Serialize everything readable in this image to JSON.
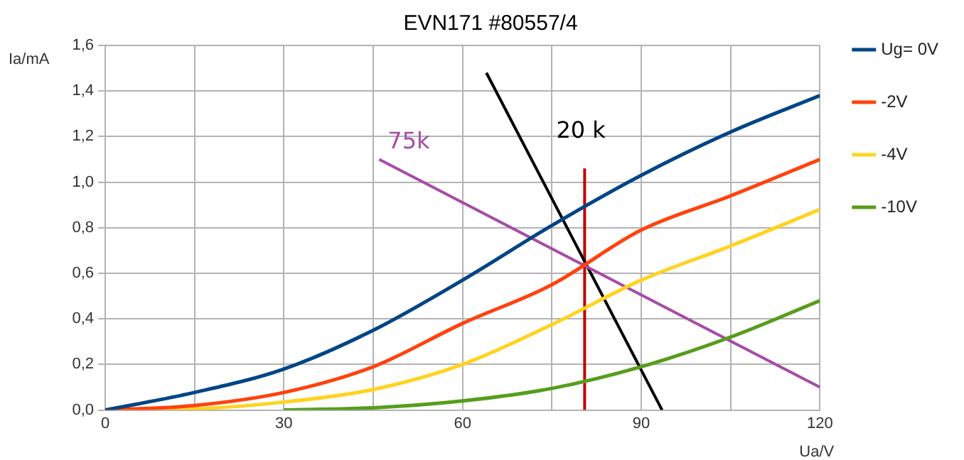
{
  "chart_data": {
    "type": "line",
    "title": "EVN171 #80557/4",
    "xlabel": "Ua/V",
    "ylabel": "Ia/mA",
    "xlim": [
      0,
      120
    ],
    "xticks": [
      0,
      {
        "value": 15,
        "label": null
      },
      30,
      {
        "value": 45,
        "label": null
      },
      60,
      {
        "value": 75,
        "label": null
      },
      90,
      {
        "value": 105,
        "label": null
      },
      120
    ],
    "ylim": [
      0,
      1.6
    ],
    "yticks": [
      {
        "value": 0,
        "label": "0,0"
      },
      {
        "value": 0.2,
        "label": "0,2"
      },
      {
        "value": 0.4,
        "label": "0,4"
      },
      {
        "value": 0.6,
        "label": "0,6"
      },
      {
        "value": 0.8,
        "label": "0,8"
      },
      {
        "value": 1.0,
        "label": "1,0"
      },
      {
        "value": 1.2,
        "label": "1,2"
      },
      {
        "value": 1.4,
        "label": "1,4"
      },
      {
        "value": 1.6,
        "label": "1,6"
      }
    ],
    "grid": true,
    "legend": "right",
    "marker": "none",
    "line_style": "solid",
    "annotations": [
      "75k",
      "20 k"
    ],
    "series": [
      {
        "name": "Ug= 0V",
        "color": "#004586",
        "x": [
          0,
          15,
          30,
          45,
          60,
          75,
          90,
          105,
          120
        ],
        "values": [
          0,
          0.077,
          0.18,
          0.35,
          0.57,
          0.81,
          1.03,
          1.22,
          1.38
        ]
      },
      {
        "name": "-2V",
        "color": "#ff420e",
        "x": [
          0,
          15,
          30,
          45,
          60,
          75,
          90,
          105,
          120
        ],
        "values": [
          0,
          0.02,
          0.077,
          0.19,
          0.38,
          0.55,
          0.79,
          0.94,
          1.1
        ]
      },
      {
        "name": "-4V",
        "color": "#ffd320",
        "x": [
          0,
          15,
          30,
          45,
          60,
          75,
          90,
          105,
          120
        ],
        "values": [
          0,
          0.005,
          0.035,
          0.09,
          0.2,
          0.375,
          0.57,
          0.72,
          0.88
        ]
      },
      {
        "name": "-10V",
        "color": "#579d1c",
        "x": [
          30,
          45,
          60,
          75,
          90,
          105,
          120
        ],
        "values": [
          0,
          0.01,
          0.04,
          0.095,
          0.19,
          0.32,
          0.48
        ]
      },
      {
        "color": "#a64ca6",
        "x": [
          46,
          120
        ],
        "values": [
          1.1,
          0.1
        ]
      },
      {
        "color": "#000000",
        "x": [
          64,
          93.5
        ],
        "values": [
          1.48,
          0
        ]
      },
      {
        "color": "#c00000",
        "x": [
          80.5,
          80.5
        ],
        "values": [
          0,
          1.06
        ]
      }
    ]
  }
}
